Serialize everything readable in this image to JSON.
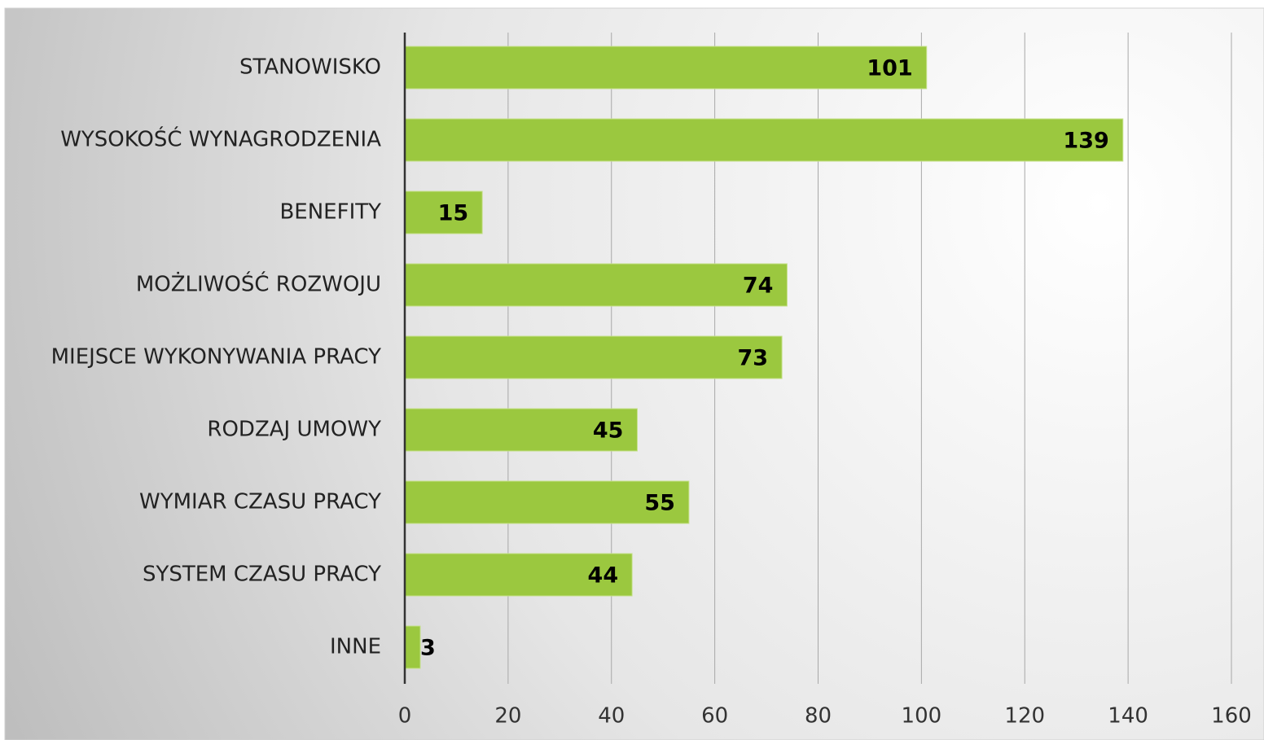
{
  "chart_data": {
    "type": "bar",
    "categories": [
      "STANOWISKO",
      "WYSOKOŚĆ WYNAGRODZENIA",
      "BENEFITY",
      "MOŻLIWOŚĆ ROZWOJU",
      "MIEJSCE WYKONYWANIA PRACY",
      "RODZAJ UMOWY",
      "WYMIAR CZASU PRACY",
      "SYSTEM CZASU PRACY",
      "INNE"
    ],
    "values": [
      101,
      139,
      15,
      74,
      73,
      45,
      55,
      44,
      3
    ],
    "color": "#9bc83f",
    "xlim": [
      0,
      160
    ],
    "xticks": [
      0,
      20,
      40,
      60,
      80,
      100,
      120,
      140,
      160
    ],
    "grid": true
  }
}
